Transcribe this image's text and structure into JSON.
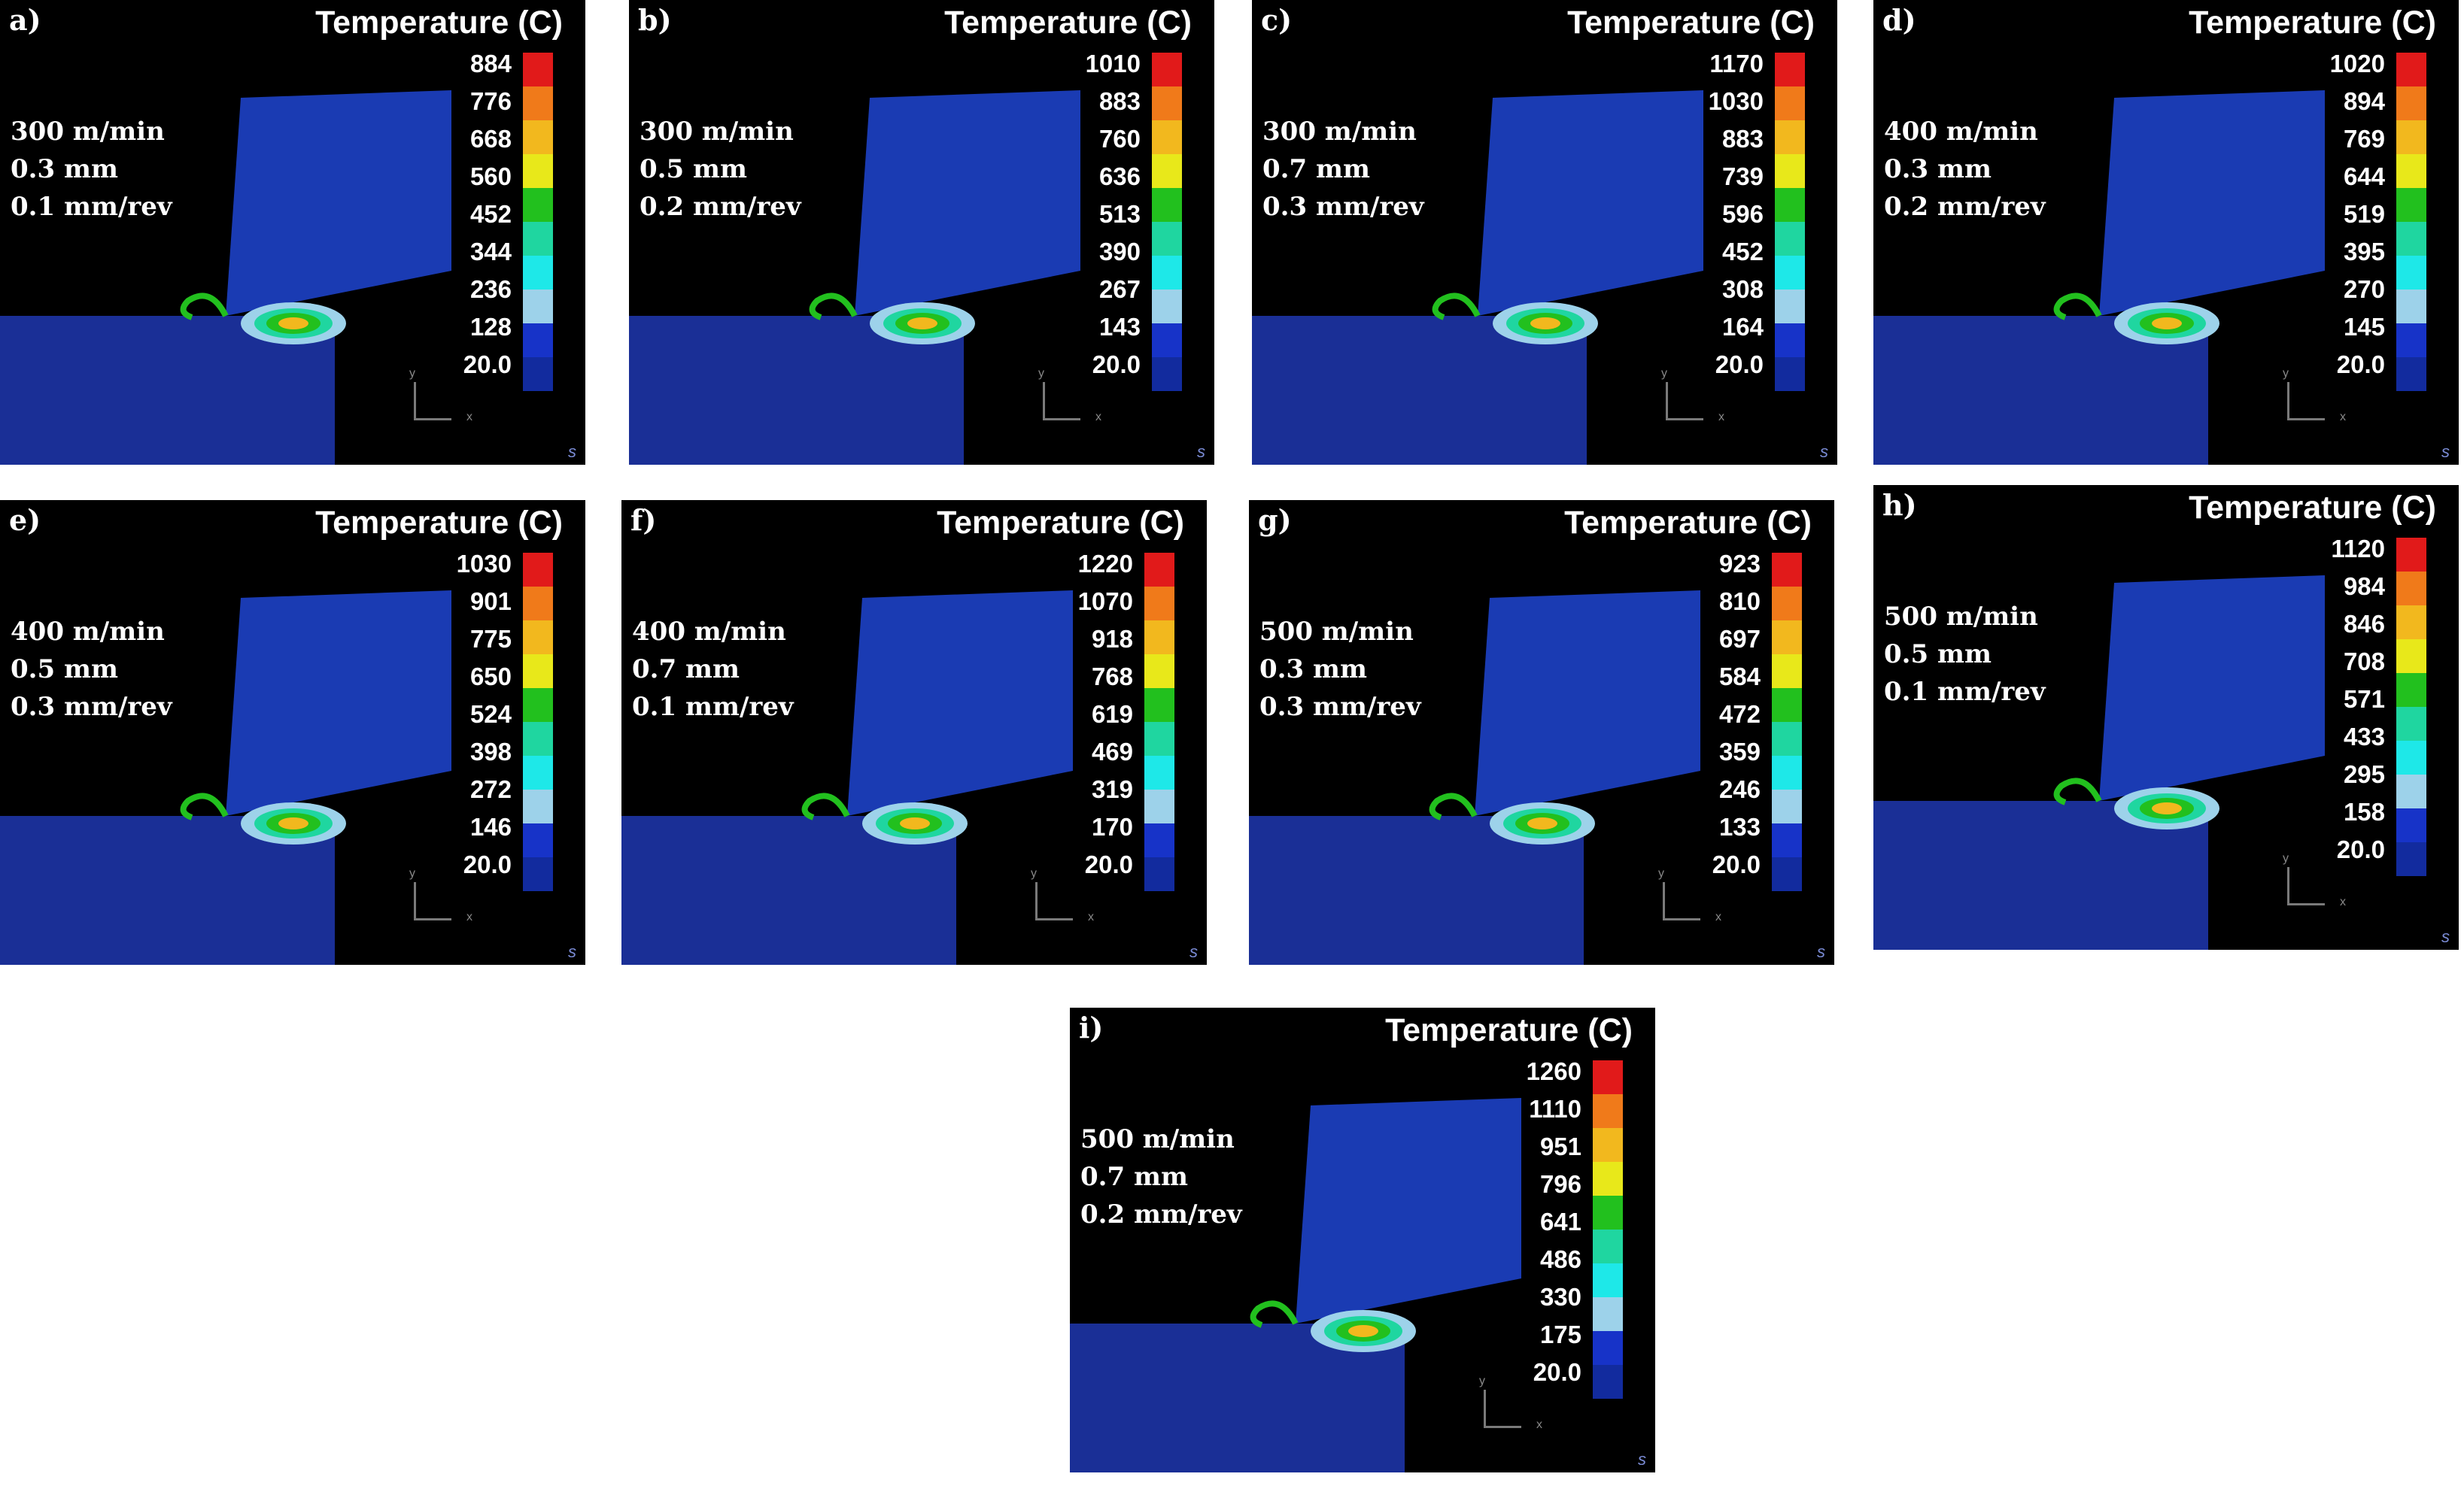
{
  "legend_title": "Temperature (C)",
  "axis_labels": {
    "x": "x",
    "y": "y"
  },
  "corner_mark": "s",
  "colors": {
    "background": "#000000",
    "tool_blue": "#1a3bb3",
    "workpiece_blue": "#1a2f96",
    "scale": [
      "#e11a1a",
      "#f07a1a",
      "#f2b81e",
      "#e8e81a",
      "#22c01e",
      "#1fd6a0",
      "#1ee8e8",
      "#9dd2ea",
      "#1733c8",
      "#122b9e"
    ]
  },
  "panels": [
    {
      "label": "a)",
      "params": [
        "300 m/min",
        "0.3 mm",
        "0.1 mm/rev"
      ],
      "ticks": [
        "884",
        "776",
        "668",
        "560",
        "452",
        "344",
        "236",
        "128",
        "20.0"
      ]
    },
    {
      "label": "b)",
      "params": [
        "300 m/min",
        "0.5 mm",
        "0.2  mm/rev"
      ],
      "ticks": [
        "1010",
        "883",
        "760",
        "636",
        "513",
        "390",
        "267",
        "143",
        "20.0"
      ]
    },
    {
      "label": "c)",
      "params": [
        "300 m/min",
        "0.7 mm",
        "0.3 mm/rev"
      ],
      "ticks": [
        "1170",
        "1030",
        "883",
        "739",
        "596",
        "452",
        "308",
        "164",
        "20.0"
      ]
    },
    {
      "label": "d)",
      "params": [
        "400 m/min",
        "0.3 mm",
        "0.2 mm/rev"
      ],
      "ticks": [
        "1020",
        "894",
        "769",
        "644",
        "519",
        "395",
        "270",
        "145",
        "20.0"
      ]
    },
    {
      "label": "e)",
      "params": [
        "400 m/min",
        "0.5 mm",
        "0.3  mm/rev"
      ],
      "ticks": [
        "1030",
        "901",
        "775",
        "650",
        "524",
        "398",
        "272",
        "146",
        "20.0"
      ]
    },
    {
      "label": "f)",
      "params": [
        "400 m/min",
        "0.7 mm",
        "0.1 mm/rev"
      ],
      "ticks": [
        "1220",
        "1070",
        "918",
        "768",
        "619",
        "469",
        "319",
        "170",
        "20.0"
      ]
    },
    {
      "label": "g)",
      "params": [
        "500 m/min",
        "0.3 mm",
        "0.3 mm/rev"
      ],
      "ticks": [
        "923",
        "810",
        "697",
        "584",
        "472",
        "359",
        "246",
        "133",
        "20.0"
      ]
    },
    {
      "label": "h)",
      "params": [
        "500 m/min",
        "0.5 mm",
        "0.1 mm/rev"
      ],
      "ticks": [
        "1120",
        "984",
        "846",
        "708",
        "571",
        "433",
        "295",
        "158",
        "20.0"
      ]
    },
    {
      "label": "i)",
      "params": [
        "500 m/min",
        "0.7  mm",
        "0.2 mm/rev"
      ],
      "ticks": [
        "1260",
        "1110",
        "951",
        "796",
        "641",
        "486",
        "330",
        "175",
        "20.0"
      ]
    }
  ]
}
